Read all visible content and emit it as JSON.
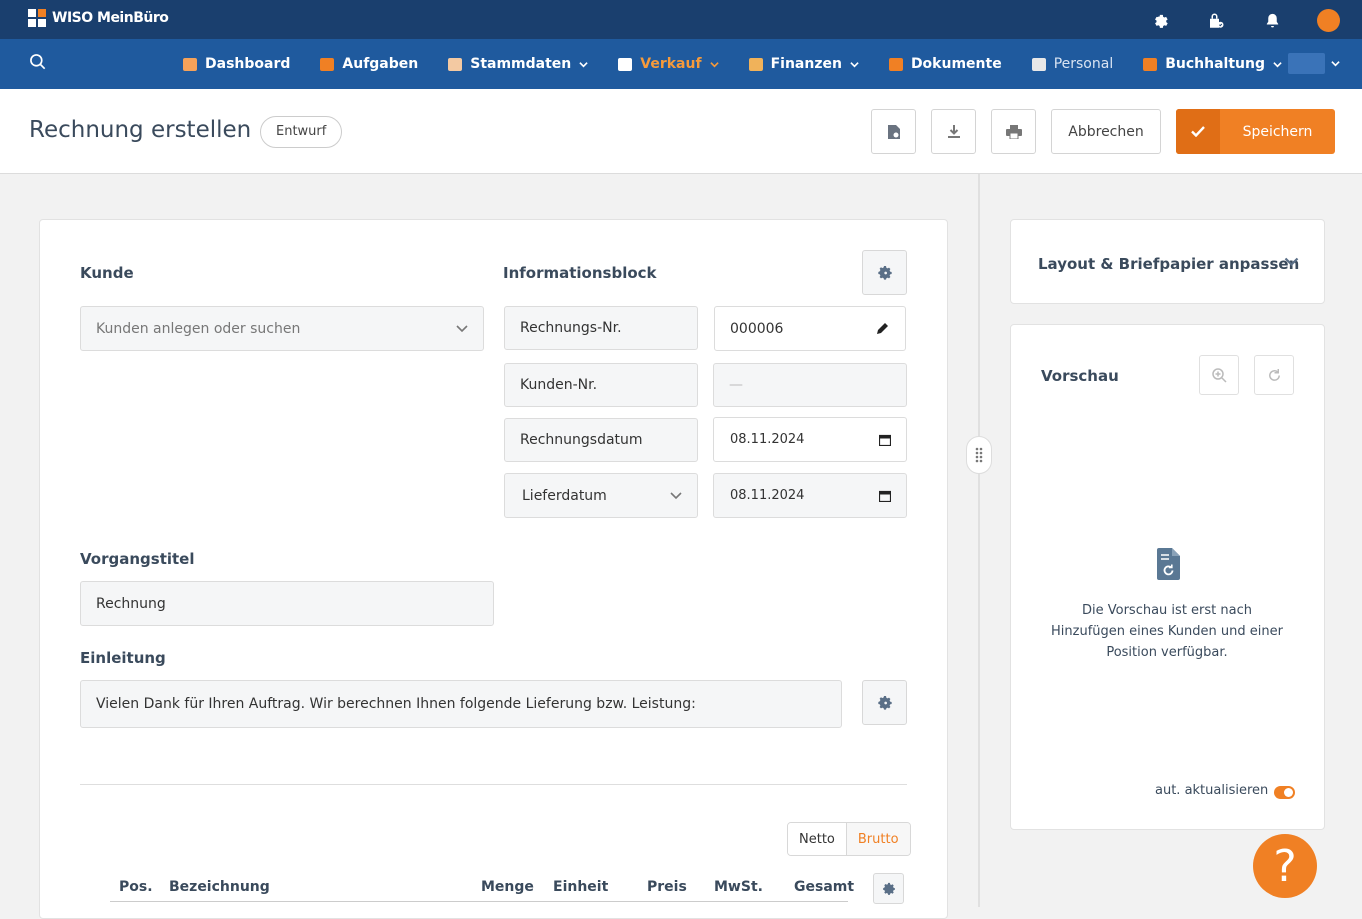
{
  "app": {
    "logo_text": "WISO MeinBüro"
  },
  "topbar": {
    "icons": [
      "gear-icon",
      "shop-icon",
      "bell-icon",
      "avatar"
    ],
    "accent": "#f08024"
  },
  "nav": {
    "items": [
      {
        "label": "Dashboard",
        "icon": "chart-icon",
        "dropdown": false,
        "state": "normal"
      },
      {
        "label": "Aufgaben",
        "icon": "tasks-icon",
        "dropdown": false,
        "state": "normal"
      },
      {
        "label": "Stammdaten",
        "icon": "person-icon",
        "dropdown": true,
        "state": "normal"
      },
      {
        "label": "Verkauf",
        "icon": "document-icon",
        "dropdown": true,
        "state": "active"
      },
      {
        "label": "Finanzen",
        "icon": "bank-icon",
        "dropdown": true,
        "state": "normal"
      },
      {
        "label": "Dokumente",
        "icon": "folder-icon",
        "dropdown": false,
        "state": "normal"
      },
      {
        "label": "Personal",
        "icon": "id-card-icon",
        "dropdown": false,
        "state": "muted"
      },
      {
        "label": "Buchhaltung",
        "icon": "ledger-icon",
        "dropdown": true,
        "state": "normal"
      }
    ]
  },
  "header": {
    "title": "Rechnung erstellen",
    "status_badge": "Entwurf",
    "cancel_label": "Abbrechen",
    "save_label": "Speichern"
  },
  "form": {
    "customer": {
      "label": "Kunde",
      "placeholder": "Kunden anlegen oder suchen"
    },
    "info_block": {
      "label": "Informationsblock",
      "rows": [
        {
          "label": "Rechnungs-Nr.",
          "value": "000006"
        },
        {
          "label": "Kunden-Nr.",
          "value": "—"
        },
        {
          "label": "Rechnungsdatum",
          "value": "08.11.2024"
        },
        {
          "label": "Lieferdatum",
          "value": "08.11.2024"
        }
      ]
    },
    "title": {
      "label": "Vorgangstitel",
      "value": "Rechnung"
    },
    "intro": {
      "label": "Einleitung",
      "value": "Vielen Dank für Ihren Auftrag. Wir berechnen Ihnen folgende Lieferung bzw. Leistung:"
    },
    "price_mode": {
      "options": [
        "Netto",
        "Brutto"
      ],
      "selected": "Brutto"
    },
    "table_headers": [
      "Pos.",
      "Bezeichnung",
      "Menge",
      "Einheit",
      "Preis",
      "MwSt.",
      "Gesamt"
    ]
  },
  "sidebar": {
    "layout_title": "Layout & Briefpapier anpassen",
    "preview_title": "Vorschau",
    "preview_message": "Die Vorschau ist erst nach Hinzufügen eines Kunden und einer Position verfügbar.",
    "auto_update_label": "aut. aktualisieren",
    "auto_update_on": true
  },
  "help": {
    "label": "?"
  }
}
